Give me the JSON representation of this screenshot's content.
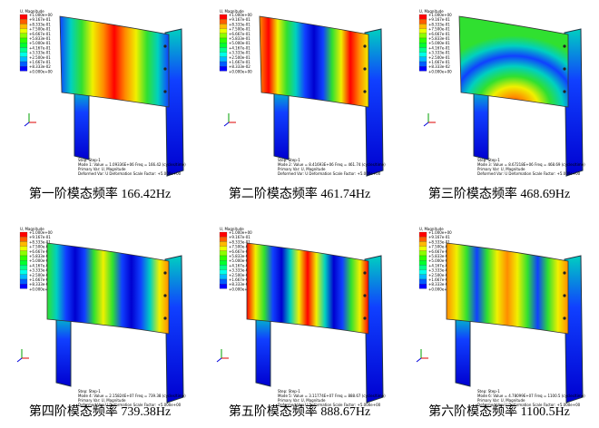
{
  "legend_title": "U, Magnitude",
  "legend_labels": [
    "+1.000e+00",
    "+9.167e-01",
    "+8.333e-01",
    "+7.500e-01",
    "+6.667e-01",
    "+5.833e-01",
    "+5.000e-01",
    "+4.167e-01",
    "+3.333e-01",
    "+2.500e-01",
    "+1.667e-01",
    "+8.333e-02",
    "+0.000e+00"
  ],
  "step": "Step: Step-1",
  "primary": "Primary Var: U, Magnitude",
  "deformed": "Deformed Var: U  Deformation Scale Factor: +5.000e+00",
  "panels": [
    {
      "caption": "第一阶模态频率 166.42Hz",
      "mode": "Mode 1: Value = 1.09336E+06 Freq = 166.42 (cycles/time)"
    },
    {
      "caption": "第二阶模态频率 461.74Hz",
      "mode": "Mode 2: Value = 8.41693E+06 Freq = 461.74 (cycles/time)"
    },
    {
      "caption": "第三阶模态频率 468.69Hz",
      "mode": "Mode 3: Value = 8.67218E+06 Freq = 468.69 (cycles/time)"
    },
    {
      "caption": "第四阶模态频率 739.38Hz",
      "mode": "Mode 4: Value = 2.15824E+07 Freq = 739.38 (cycles/time)"
    },
    {
      "caption": "第五阶模态频率 888.67Hz",
      "mode": "Mode 5: Value = 3.11774E+07 Freq = 888.67 (cycles/time)"
    },
    {
      "caption": "第六阶模态频率 1100.5Hz",
      "mode": "Mode 6: Value = 4.78099E+07 Freq = 1100.5 (cycles/time)"
    }
  ]
}
